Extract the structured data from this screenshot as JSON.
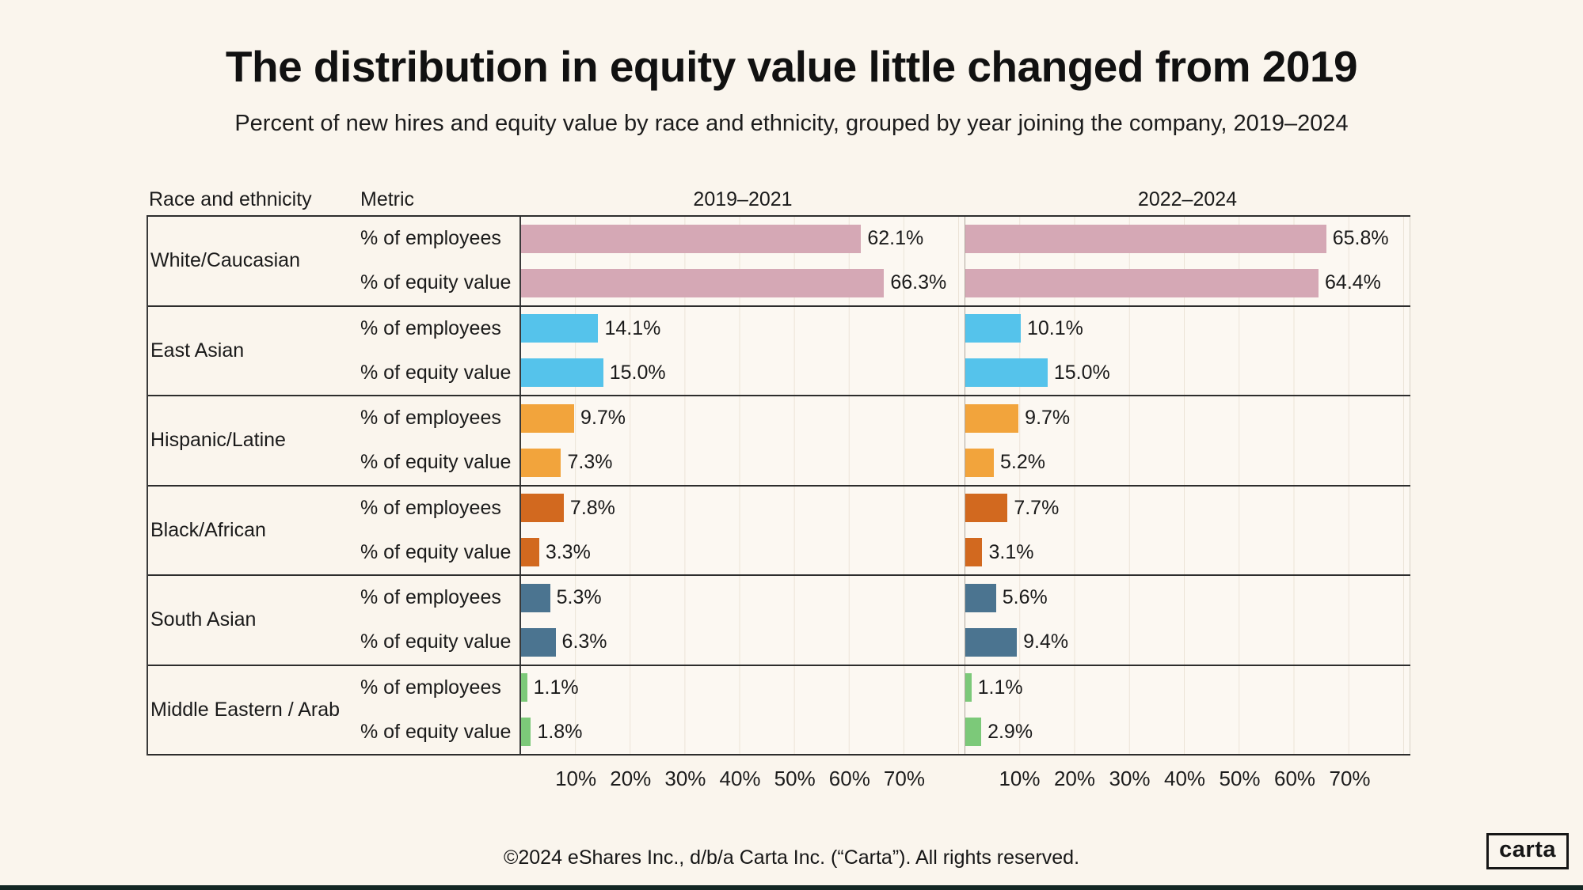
{
  "chart_data": {
    "type": "bar",
    "title": "The distribution in equity value little changed from 2019",
    "subtitle": "Percent of new hires and equity value by race and ethnicity, grouped by year joining the company, 2019–2024",
    "col_headers": {
      "race": "Race and ethnicity",
      "metric": "Metric"
    },
    "panels": [
      "2019–2021",
      "2022–2024"
    ],
    "metric_labels": [
      "% of employees",
      "% of equity value"
    ],
    "axis_max_percent": 81,
    "x_ticks_percent": [
      10,
      20,
      30,
      40,
      50,
      60,
      70
    ],
    "x_tick_labels": [
      "10%",
      "20%",
      "30%",
      "40%",
      "50%",
      "60%",
      "70%"
    ],
    "grid": true,
    "unit": "%",
    "rows": [
      {
        "race": "White/Caucasian",
        "color": "#d5a8b5",
        "series": [
          [
            62.1,
            66.3
          ],
          [
            65.8,
            64.4
          ]
        ]
      },
      {
        "race": "East Asian",
        "color": "#55c3eb",
        "series": [
          [
            14.1,
            15.0
          ],
          [
            10.1,
            15.0
          ]
        ]
      },
      {
        "race": "Hispanic/Latine",
        "color": "#f2a43c",
        "series": [
          [
            9.7,
            7.3
          ],
          [
            9.7,
            5.2
          ]
        ]
      },
      {
        "race": "Black/African",
        "color": "#d2691f",
        "series": [
          [
            7.8,
            3.3
          ],
          [
            7.7,
            3.1
          ]
        ]
      },
      {
        "race": "South Asian",
        "color": "#4b7490",
        "series": [
          [
            5.3,
            6.3
          ],
          [
            5.6,
            9.4
          ]
        ]
      },
      {
        "race": "Middle Eastern / Arab",
        "color": "#7cc979",
        "series": [
          [
            1.1,
            1.8
          ],
          [
            1.1,
            2.9
          ]
        ]
      }
    ]
  },
  "footer": {
    "copyright": "©2024 eShares Inc., d/b/a Carta Inc. (“Carta”). All rights reserved.",
    "logo_text": "carta"
  },
  "page": {
    "background": "#faf5ed",
    "accent_dark": "#132724",
    "line_color": "#2d2d2d"
  }
}
